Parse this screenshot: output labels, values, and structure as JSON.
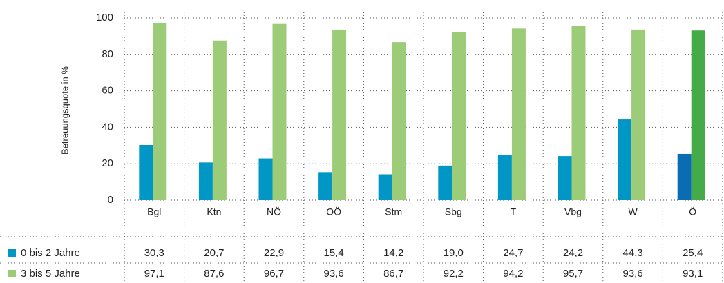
{
  "chart_data": {
    "type": "bar",
    "y_label": "Betreuungsquote in %",
    "categories": [
      "Bgl",
      "Ktn",
      "NÖ",
      "OÖ",
      "Stm",
      "Sbg",
      "T",
      "Vbg",
      "W",
      "Ö"
    ],
    "series": [
      {
        "name": "0 bis 2 Jahre",
        "color": "#0096c6",
        "colors": [
          "#0096c6",
          "#0096c6",
          "#0096c6",
          "#0096c6",
          "#0096c6",
          "#0096c6",
          "#0096c6",
          "#0096c6",
          "#0096c6",
          "#0a6db3"
        ],
        "values": [
          30.3,
          20.7,
          22.9,
          15.4,
          14.2,
          19.0,
          24.7,
          24.2,
          44.3,
          25.4
        ],
        "value_labels": [
          "30,3",
          "20,7",
          "22,9",
          "15,4",
          "14,2",
          "19,0",
          "24,7",
          "24,2",
          "44,3",
          "25,4"
        ]
      },
      {
        "name": "3 bis 5 Jahre",
        "color": "#9ccc78",
        "colors": [
          "#9ccc78",
          "#9ccc78",
          "#9ccc78",
          "#9ccc78",
          "#9ccc78",
          "#9ccc78",
          "#9ccc78",
          "#9ccc78",
          "#9ccc78",
          "#45aa48"
        ],
        "values": [
          97.1,
          87.6,
          96.7,
          93.6,
          86.7,
          92.2,
          94.2,
          95.7,
          93.6,
          93.1
        ],
        "value_labels": [
          "97,1",
          "87,6",
          "96,7",
          "93,6",
          "86,7",
          "92,2",
          "94,2",
          "95,7",
          "93,6",
          "93,1"
        ]
      }
    ],
    "ylim": [
      0,
      100
    ],
    "yticks": [
      0,
      20,
      40,
      60,
      80,
      100
    ],
    "grid": true
  }
}
